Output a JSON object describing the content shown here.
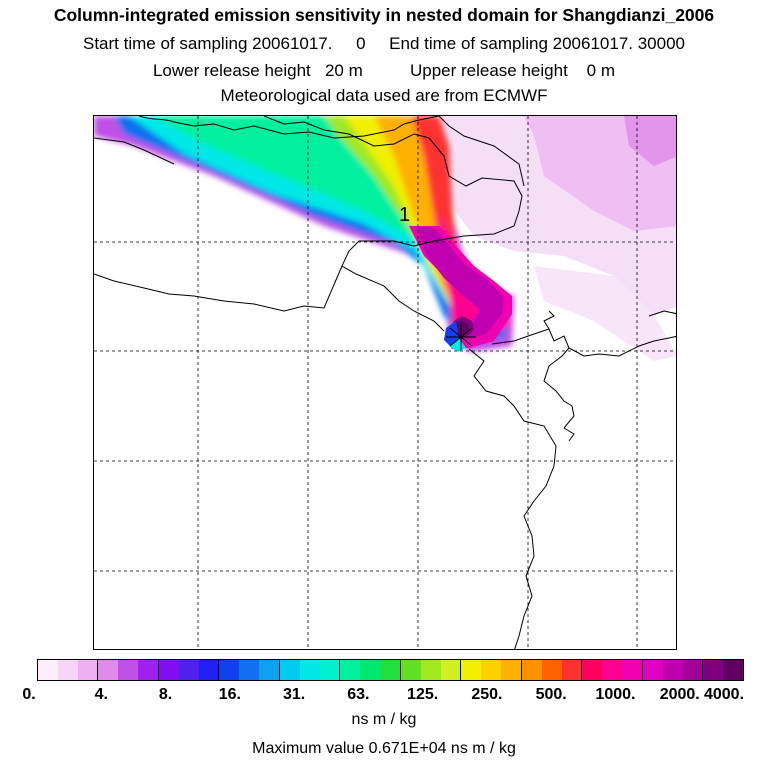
{
  "header": {
    "title": "Column-integrated emission sensitivity in nested domain for Shangdianzi_2006",
    "sampling_line": "Start time of sampling 20061017.     0     End time of sampling 20061017. 30000",
    "release_line": "Lower release height   20 m          Upper release height    0 m",
    "met_line": "Meteorological data used are from ECMWF"
  },
  "map": {
    "release_marker_label": "1",
    "grid": "dashed"
  },
  "colorbar": {
    "tick_labels": [
      "0.",
      "4.",
      "8.",
      "16.",
      "31.",
      "63.",
      "125.",
      "250.",
      "500.",
      "1000.",
      "2000.",
      "4000."
    ],
    "colors": [
      "#fdeefd",
      "#f7d4f8",
      "#eeb0f2",
      "#e08ae9",
      "#c050e6",
      "#a020f0",
      "#8010f0",
      "#5020f0",
      "#2020f0",
      "#1040f0",
      "#1070f0",
      "#10a0f0",
      "#00ccf0",
      "#00e8e8",
      "#00f0d0",
      "#00f0a0",
      "#00e870",
      "#20e040",
      "#60e020",
      "#a0e820",
      "#d0f020",
      "#f0f000",
      "#ffd000",
      "#ffb000",
      "#ff9000",
      "#ff6000",
      "#ff3030",
      "#ff0060",
      "#ff0090",
      "#f000b0",
      "#e000c0",
      "#c000b0",
      "#a00098",
      "#800080",
      "#600060"
    ],
    "units": "ns m / kg"
  },
  "footer": {
    "max_value": "Maximum value  0.671E+04 ns m / kg"
  }
}
